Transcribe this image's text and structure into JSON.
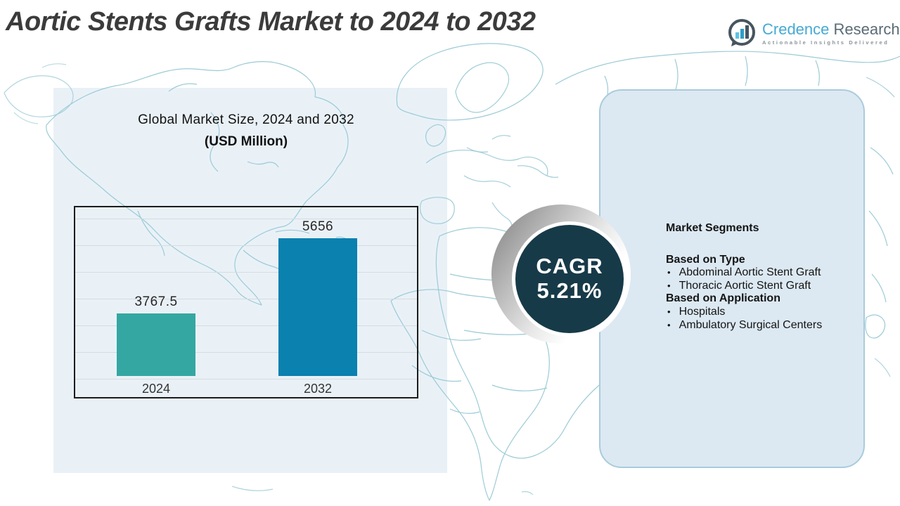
{
  "title": "Aortic Stents Grafts Market to 2024 to 2032",
  "brand": {
    "name_primary": "Credence",
    "name_secondary": "Research",
    "tagline": "Actionable Insights Delivered"
  },
  "chart": {
    "title_line1": "Global Market Size, 2024 and 2032",
    "title_line2": "(USD Million)"
  },
  "chart_data": {
    "type": "bar",
    "title": "Global Market Size, 2024 and 2032 (USD Million)",
    "unit": "USD Million",
    "categories": [
      "2024",
      "2032"
    ],
    "values": [
      3767.5,
      5656
    ],
    "ylim": [
      2200,
      6500
    ],
    "grid": true,
    "legend": false,
    "bar_colors": [
      "#35A7A2",
      "#0A81AF"
    ]
  },
  "cagr": {
    "label": "CAGR",
    "value": "5.21%",
    "circle_color": "#173A49"
  },
  "segments": {
    "heading": "Market Segments",
    "groups": [
      {
        "heading": "Based on Type",
        "items": [
          "Abdominal Aortic Stent Graft",
          "Thoracic Aortic Stent Graft"
        ]
      },
      {
        "heading": "Based on Application",
        "items": [
          "Hospitals",
          "Ambulatory Surgical Centers"
        ]
      }
    ]
  },
  "colors": {
    "title_text": "#3B3B3B",
    "left_panel": "#E9F1F7",
    "right_panel": "#DCE9F2",
    "map_lines": "#9CCBD6",
    "bar_2024": "#35A7A2",
    "bar_2032": "#0A81AF",
    "cagr_circle": "#173A49"
  }
}
